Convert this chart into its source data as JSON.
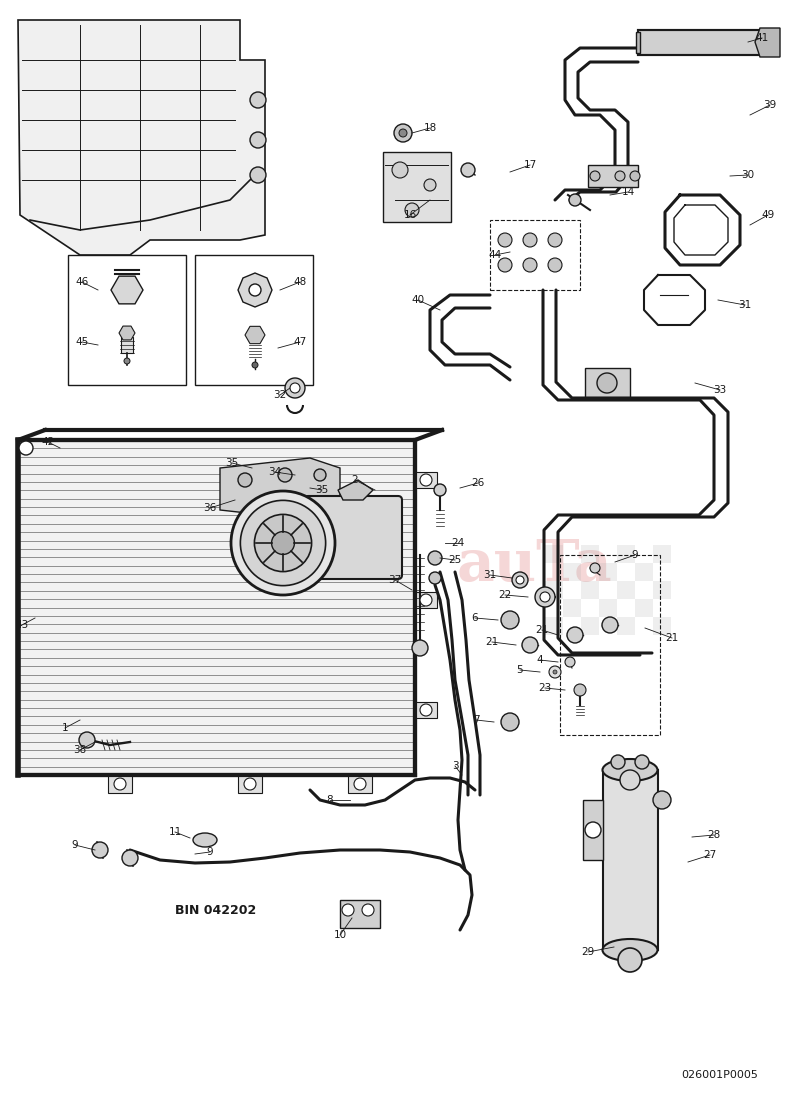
{
  "background_color": "#ffffff",
  "line_color": "#1a1a1a",
  "footer_text": "026001P0005",
  "bin_text": "BIN 042202",
  "watermark_red": "#cc2222",
  "pipe_lw": 2.2,
  "thin_lw": 1.0,
  "thick_lw": 3.0
}
